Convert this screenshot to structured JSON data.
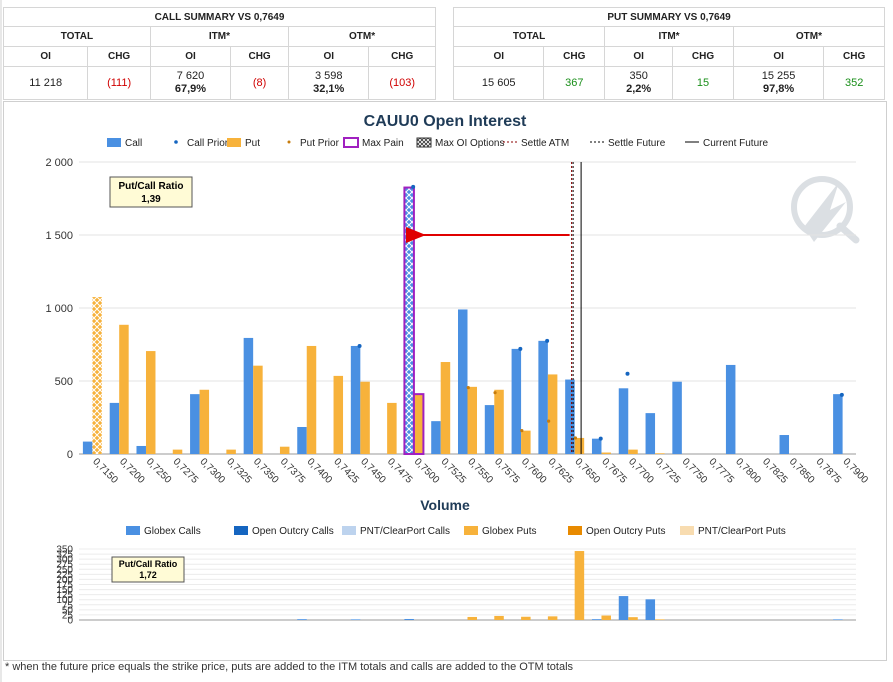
{
  "call_summary": {
    "title": "CALL SUMMARY VS 0,7649",
    "groups": [
      "TOTAL",
      "ITM*",
      "OTM*"
    ],
    "headers": [
      "OI",
      "CHG",
      "OI",
      "CHG",
      "OI",
      "CHG"
    ],
    "total_oi": "11 218",
    "total_chg": "(111)",
    "itm_oi": "7 620",
    "itm_pct": "67,9%",
    "itm_chg": "(8)",
    "otm_oi": "3 598",
    "otm_pct": "32,1%",
    "otm_chg": "(103)"
  },
  "put_summary": {
    "title": "PUT SUMMARY VS 0,7649",
    "groups": [
      "TOTAL",
      "ITM*",
      "OTM*"
    ],
    "headers": [
      "OI",
      "CHG",
      "OI",
      "CHG",
      "OI",
      "CHG"
    ],
    "total_oi": "15 605",
    "total_chg": "367",
    "itm_oi": "350",
    "itm_pct": "2,2%",
    "itm_chg": "15",
    "otm_oi": "15 255",
    "otm_pct": "97,8%",
    "otm_chg": "352"
  },
  "colors": {
    "call": "#4a90e2",
    "put": "#f7b23b",
    "call_prior": "#1565c0",
    "put_prior": "#c77c0c",
    "max_pain": "#a020c0",
    "settle_atm": "#8b0000",
    "arrow": "#e00000",
    "open_outcry_calls": "#1565c0",
    "pnt_calls": "#bdd3ee",
    "open_outcry_puts": "#e88a00",
    "pnt_puts": "#f8dcb0"
  },
  "footnote": "* when the future price equals the strike price, puts are added to the ITM totals and calls are added to the OTM totals",
  "chart_data": [
    {
      "type": "bar",
      "title": "CAUU0 Open Interest",
      "legend": [
        "Call",
        "Call Prior",
        "Put",
        "Put Prior",
        "Max Pain",
        "Max OI Options",
        "Settle ATM",
        "Settle Future",
        "Current Future"
      ],
      "legend_position": "top",
      "ylim": [
        0,
        2000
      ],
      "yticks": [
        0,
        500,
        1000,
        1500,
        2000
      ],
      "ytick_labels": [
        "0",
        "500",
        "1 000",
        "1 500",
        "2 000"
      ],
      "grid": true,
      "categories": [
        "0,7150",
        "0,7200",
        "0,7250",
        "0,7275",
        "0,7300",
        "0,7325",
        "0,7350",
        "0,7375",
        "0,7400",
        "0,7425",
        "0,7450",
        "0,7475",
        "0,7500",
        "0,7525",
        "0,7550",
        "0,7575",
        "0,7600",
        "0,7625",
        "0,7650",
        "0,7675",
        "0,7700",
        "0,7725",
        "0,7750",
        "0,7775",
        "0,7800",
        "0,7825",
        "0,7850",
        "0,7875",
        "0,7900"
      ],
      "series": [
        {
          "name": "Call",
          "values": [
            85,
            350,
            55,
            0,
            410,
            0,
            795,
            0,
            185,
            0,
            740,
            0,
            1825,
            225,
            990,
            335,
            720,
            775,
            510,
            105,
            450,
            280,
            495,
            0,
            610,
            0,
            130,
            0,
            410
          ]
        },
        {
          "name": "Call Prior",
          "values": [
            null,
            null,
            null,
            null,
            null,
            null,
            null,
            null,
            null,
            null,
            740,
            null,
            1830,
            null,
            null,
            null,
            720,
            775,
            null,
            105,
            550,
            null,
            null,
            null,
            null,
            null,
            null,
            null,
            405
          ]
        },
        {
          "name": "Put",
          "values": [
            1075,
            885,
            705,
            30,
            440,
            30,
            605,
            50,
            740,
            535,
            495,
            350,
            410,
            630,
            460,
            440,
            160,
            545,
            110,
            10,
            30,
            5,
            0,
            0,
            0,
            0,
            0,
            0,
            0
          ]
        },
        {
          "name": "Put Prior",
          "values": [
            null,
            null,
            null,
            null,
            null,
            null,
            null,
            null,
            null,
            null,
            null,
            null,
            null,
            null,
            455,
            420,
            160,
            225,
            110,
            null,
            null,
            null,
            null,
            null,
            null,
            null,
            null,
            null,
            null
          ]
        }
      ],
      "max_pain_strike": "0,7500",
      "max_oi_options": [
        "Put 0,7150",
        "Call 0,7500"
      ],
      "settle_atm_x": 0.765,
      "settle_future_x": 0.7649,
      "current_future_x": 0.7656,
      "arrow_level": 1500,
      "put_call_ratio_label": "Put/Call Ratio",
      "put_call_ratio": "1,39"
    },
    {
      "type": "bar",
      "title": "Volume",
      "legend": [
        "Globex Calls",
        "Open Outcry Calls",
        "PNT/ClearPort Calls",
        "Globex Puts",
        "Open Outcry Puts",
        "PNT/ClearPort Puts"
      ],
      "legend_position": "top",
      "ylim": [
        0,
        350
      ],
      "yticks": [
        0,
        25,
        50,
        75,
        100,
        125,
        150,
        175,
        200,
        225,
        250,
        275,
        300,
        325,
        350
      ],
      "grid": true,
      "categories": [
        "0,7150",
        "0,7200",
        "0,7250",
        "0,7275",
        "0,7300",
        "0,7325",
        "0,7350",
        "0,7375",
        "0,7400",
        "0,7425",
        "0,7450",
        "0,7475",
        "0,7500",
        "0,7525",
        "0,7550",
        "0,7575",
        "0,7600",
        "0,7625",
        "0,7650",
        "0,7675",
        "0,7700",
        "0,7725",
        "0,7750",
        "0,7775",
        "0,7800",
        "0,7825",
        "0,7850",
        "0,7875",
        "0,7900"
      ],
      "series": [
        {
          "name": "Globex Calls",
          "values": [
            0,
            0,
            0,
            0,
            0,
            0,
            0,
            0,
            4,
            0,
            3,
            0,
            5,
            0,
            0,
            0,
            0,
            0,
            0,
            4,
            118,
            102,
            0,
            0,
            0,
            0,
            0,
            0,
            3
          ]
        },
        {
          "name": "Globex Puts",
          "values": [
            0,
            0,
            0,
            0,
            0,
            0,
            0,
            0,
            0,
            0,
            0,
            0,
            0,
            0,
            15,
            20,
            16,
            18,
            340,
            22,
            14,
            3,
            0,
            0,
            0,
            0,
            0,
            0,
            0
          ]
        }
      ],
      "put_call_ratio_label": "Put/Call Ratio",
      "put_call_ratio": "1,72"
    }
  ]
}
